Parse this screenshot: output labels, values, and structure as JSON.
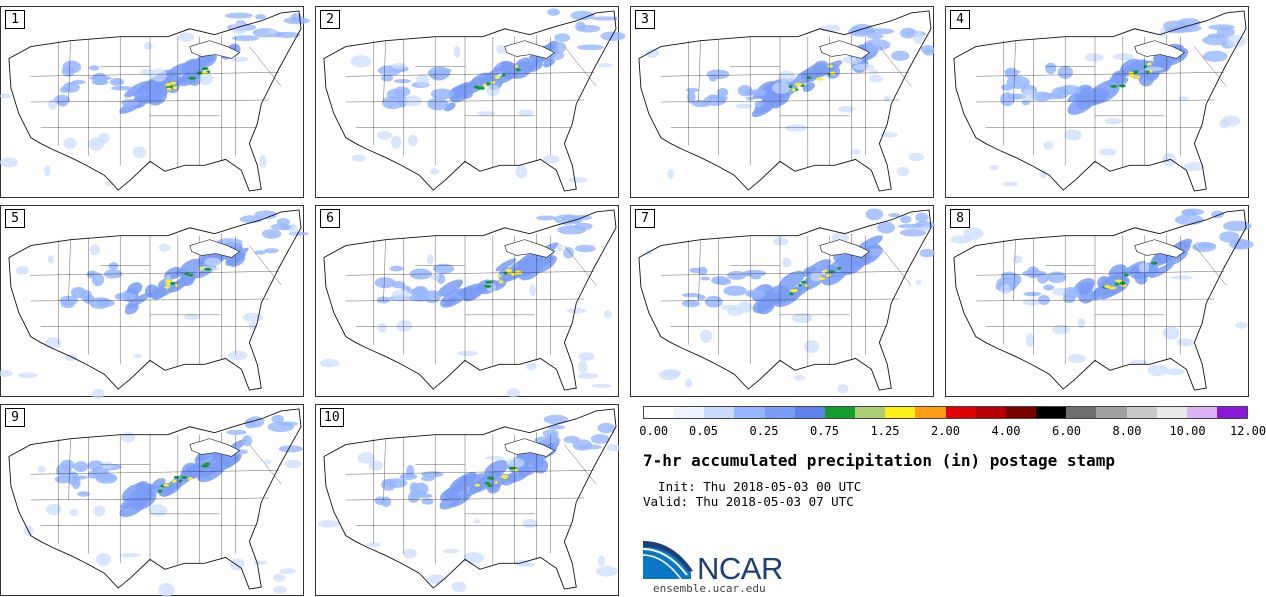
{
  "panels": [
    {
      "label": "1"
    },
    {
      "label": "2"
    },
    {
      "label": "3"
    },
    {
      "label": "4"
    },
    {
      "label": "5"
    },
    {
      "label": "6"
    },
    {
      "label": "7"
    },
    {
      "label": "8"
    },
    {
      "label": "9"
    },
    {
      "label": "10"
    }
  ],
  "colorbar": {
    "colors": [
      "#ffffff",
      "#eef4ff",
      "#c9dcff",
      "#97b6ff",
      "#7a9cf8",
      "#5e83ef",
      "#129c2b",
      "#aacf73",
      "#ffef18",
      "#ff9c14",
      "#e00000",
      "#b80000",
      "#7a0000",
      "#000000",
      "#6e6e6e",
      "#a0a0a0",
      "#c8c8c8",
      "#e8e8e8",
      "#dcb4f5",
      "#8b1ad8"
    ],
    "ticks": [
      "0.00",
      "0.05",
      "0.25",
      "0.75",
      "1.25",
      "2.00",
      "4.00",
      "6.00",
      "8.00",
      "10.00",
      "12.00"
    ]
  },
  "title": "7-hr accumulated precipitation (in) postage stamp",
  "init": "  Init: Thu 2018-05-03 00 UTC",
  "valid": "Valid: Thu 2018-05-03 07 UTC",
  "logo": {
    "text": "NCAR",
    "site": "ensemble.ucar.edu"
  }
}
